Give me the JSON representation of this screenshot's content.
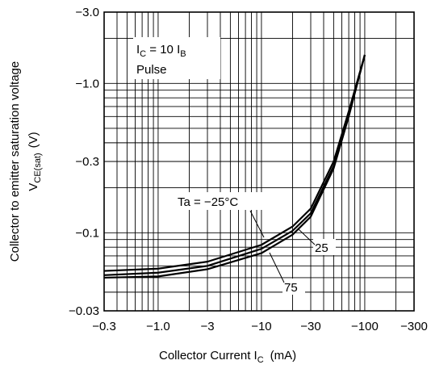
{
  "chart_data": {
    "type": "line",
    "x_scale": "log",
    "y_scale": "log",
    "xlim": [
      -0.3,
      -300
    ],
    "ylim": [
      -0.03,
      -3.0
    ],
    "grid": true,
    "x_ticks": [
      "−0.3",
      "−1.0",
      "−3",
      "−10",
      "−30",
      "−100",
      "−300"
    ],
    "y_ticks": [
      "−3.0",
      "−1.0",
      "−0.3",
      "−0.1",
      "−0.03"
    ],
    "xlabel": {
      "text": "Collector Current  I",
      "sub": "C",
      "unit": "(mA)"
    },
    "ylabel": {
      "line1": "Collector to emitter saturation voltage",
      "line2_main": "V",
      "line2_sub": "CE(sat)",
      "line2_unit": "(V)"
    },
    "conditions": {
      "line1_main": "I",
      "line1_sub1": "C",
      "line1_mid": " = 10 I",
      "line1_sub2": "B",
      "line2": "Pulse"
    },
    "series": [
      {
        "name": "Ta = −25°C",
        "x": [
          -0.3,
          -1,
          -3,
          -10,
          -20,
          -30,
          -50,
          -70,
          -100
        ],
        "y": [
          -0.0555,
          -0.0575,
          -0.064,
          -0.083,
          -0.11,
          -0.145,
          -0.3,
          -0.65,
          -1.55
        ]
      },
      {
        "name": "25",
        "x": [
          -0.3,
          -1,
          -3,
          -10,
          -20,
          -30,
          -50,
          -70,
          -100
        ],
        "y": [
          -0.052,
          -0.054,
          -0.06,
          -0.078,
          -0.103,
          -0.135,
          -0.28,
          -0.62,
          -1.55
        ]
      },
      {
        "name": "75",
        "x": [
          -0.3,
          -1,
          -3,
          -10,
          -20,
          -30,
          -50,
          -70,
          -100
        ],
        "y": [
          -0.05,
          -0.051,
          -0.057,
          -0.073,
          -0.097,
          -0.128,
          -0.27,
          -0.6,
          -1.55
        ]
      }
    ],
    "series_labels": {
      "ta_main": "Ta = −25°C",
      "label_25": "25",
      "label_75": "75"
    }
  }
}
